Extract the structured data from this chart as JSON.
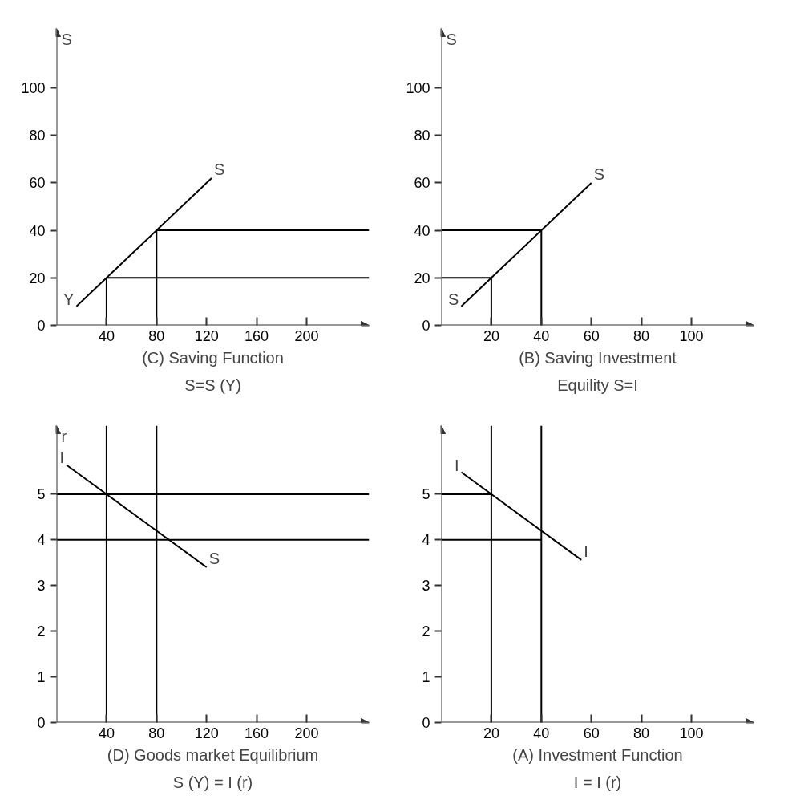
{
  "chart_data": [
    {
      "type": "line",
      "xlabel": "(C) Saving Function\nS=S (Y)",
      "ylabel": "S",
      "xlim": [
        0,
        250
      ],
      "ylim": [
        0,
        125
      ],
      "xticks": [
        40,
        80,
        120,
        160,
        200
      ],
      "yticks": [
        0,
        20,
        40,
        60,
        80,
        100
      ],
      "series": [
        {
          "color": "#000000",
          "x": [
            16,
            124
          ],
          "values": [
            8,
            62
          ]
        },
        {
          "color": "#000000",
          "x": [
            40,
            250
          ],
          "values": [
            20,
            20
          ]
        },
        {
          "color": "#000000",
          "x": [
            80,
            250
          ],
          "values": [
            40,
            40
          ]
        },
        {
          "color": "#000000",
          "x": [
            40,
            40
          ],
          "values": [
            20,
            0
          ]
        },
        {
          "color": "#000000",
          "x": [
            80,
            80
          ],
          "values": [
            40,
            0
          ]
        }
      ],
      "annotations": [
        {
          "text": "Y",
          "x": 16,
          "y": 8
        },
        {
          "text": "S",
          "x": 124,
          "y": 62
        }
      ]
    },
    {
      "type": "line",
      "xlabel": "(B) Saving Investment\nEquility S=I",
      "ylabel": "S",
      "xlim": [
        0,
        125
      ],
      "ylim": [
        0,
        125
      ],
      "xticks": [
        20,
        40,
        60,
        80,
        100
      ],
      "yticks": [
        0,
        20,
        40,
        60,
        80,
        100
      ],
      "series": [
        {
          "color": "#000000",
          "x": [
            8,
            60
          ],
          "values": [
            8,
            60
          ]
        },
        {
          "color": "#000000",
          "x": [
            0,
            20
          ],
          "values": [
            20,
            20
          ]
        },
        {
          "color": "#000000",
          "x": [
            0,
            40
          ],
          "values": [
            40,
            40
          ]
        },
        {
          "color": "#000000",
          "x": [
            20,
            20
          ],
          "values": [
            20,
            0
          ]
        },
        {
          "color": "#000000",
          "x": [
            40,
            40
          ],
          "values": [
            40,
            0
          ]
        }
      ],
      "annotations": [
        {
          "text": "S",
          "x": 8,
          "y": 8
        },
        {
          "text": "S",
          "x": 60,
          "y": 60
        }
      ]
    },
    {
      "type": "line",
      "xlabel": "(D) Goods market Equilibrium\nS (Y) = I (r)",
      "ylabel": "r",
      "xlim": [
        0,
        250
      ],
      "ylim": [
        0,
        6.5
      ],
      "xticks": [
        40,
        80,
        120,
        160,
        200
      ],
      "yticks": [
        0,
        1,
        2,
        3,
        4,
        5
      ],
      "series": [
        {
          "color": "#000000",
          "x": [
            8,
            120
          ],
          "values": [
            5.64,
            3.4
          ]
        },
        {
          "color": "#000000",
          "x": [
            0,
            250
          ],
          "values": [
            5,
            5
          ]
        },
        {
          "color": "#000000",
          "x": [
            0,
            250
          ],
          "values": [
            4,
            4
          ]
        },
        {
          "color": "#000000",
          "x": [
            40,
            40
          ],
          "values": [
            0,
            6.5
          ]
        },
        {
          "color": "#000000",
          "x": [
            80,
            80
          ],
          "values": [
            0,
            6.5
          ]
        }
      ],
      "annotations": [
        {
          "text": "I",
          "x": 8,
          "y": 5.64
        },
        {
          "text": "S",
          "x": 120,
          "y": 3.4
        }
      ]
    },
    {
      "type": "line",
      "xlabel": "(A) Investment Function\nI = I (r)",
      "xlim": [
        0,
        125
      ],
      "ylim": [
        0,
        6.5
      ],
      "xticks": [
        20,
        40,
        60,
        80,
        100
      ],
      "yticks": [
        0,
        1,
        2,
        3,
        4,
        5
      ],
      "series": [
        {
          "color": "#000000",
          "x": [
            8,
            56
          ],
          "values": [
            5.48,
            3.56
          ]
        },
        {
          "color": "#000000",
          "x": [
            0,
            20
          ],
          "values": [
            5,
            5
          ]
        },
        {
          "color": "#000000",
          "x": [
            0,
            40
          ],
          "values": [
            4,
            4
          ]
        },
        {
          "color": "#000000",
          "x": [
            20,
            20
          ],
          "values": [
            0,
            6.5
          ]
        },
        {
          "color": "#000000",
          "x": [
            40,
            40
          ],
          "values": [
            0,
            6.5
          ]
        }
      ],
      "annotations": [
        {
          "text": "I",
          "x": 8,
          "y": 5.48
        },
        {
          "text": "I",
          "x": 56,
          "y": 3.56
        }
      ]
    }
  ]
}
